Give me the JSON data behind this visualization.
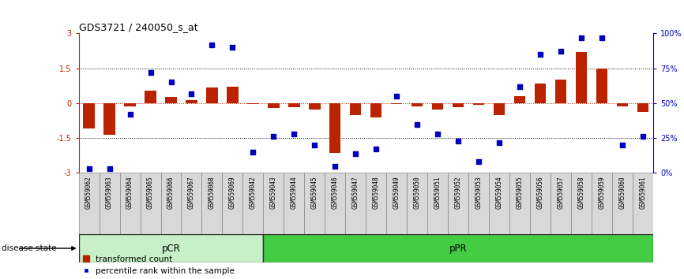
{
  "title": "GDS3721 / 240050_s_at",
  "samples": [
    "GSM559062",
    "GSM559063",
    "GSM559064",
    "GSM559065",
    "GSM559066",
    "GSM559067",
    "GSM559068",
    "GSM559069",
    "GSM559042",
    "GSM559043",
    "GSM559044",
    "GSM559045",
    "GSM559046",
    "GSM559047",
    "GSM559048",
    "GSM559049",
    "GSM559050",
    "GSM559051",
    "GSM559052",
    "GSM559053",
    "GSM559054",
    "GSM559055",
    "GSM559056",
    "GSM559057",
    "GSM559058",
    "GSM559059",
    "GSM559060",
    "GSM559061"
  ],
  "bar_values": [
    -1.1,
    -1.35,
    -0.12,
    0.55,
    0.28,
    0.12,
    0.68,
    0.72,
    -0.05,
    -0.22,
    -0.18,
    -0.28,
    -2.15,
    -0.52,
    -0.62,
    -0.05,
    -0.12,
    -0.28,
    -0.18,
    -0.08,
    -0.52,
    0.32,
    0.85,
    1.0,
    2.2,
    1.48,
    -0.12,
    -0.38
  ],
  "percentile_values": [
    3,
    3,
    42,
    72,
    65,
    57,
    92,
    90,
    15,
    26,
    28,
    20,
    5,
    14,
    17,
    55,
    35,
    28,
    23,
    8,
    22,
    62,
    85,
    87,
    97,
    97,
    20,
    26
  ],
  "pCR_count": 9,
  "pPR_count": 19,
  "ylim": [
    -3,
    3
  ],
  "bar_color": "#bb2200",
  "dot_color": "#0000bb",
  "pCR_color": "#c8f0c8",
  "pPR_color": "#44cc44",
  "label_bar": "transformed count",
  "label_dot": "percentile rank within the sample",
  "disease_state_label": "disease state"
}
